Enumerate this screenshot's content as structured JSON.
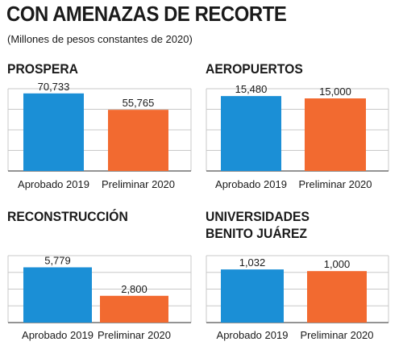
{
  "header": {
    "title": "CON AMENAZAS DE RECORTE",
    "subtitle": "(Millones de pesos constantes de 2020)"
  },
  "colors": {
    "aprobado": "#1b8fd6",
    "preliminar": "#f26a30",
    "grid": "#c8c8c8",
    "axis": "#555555"
  },
  "chart_data": [
    {
      "type": "bar",
      "title": "PROSPERA",
      "categories": [
        "Aprobado 2019",
        "Preliminar 2020"
      ],
      "values": [
        70733,
        55765
      ],
      "value_labels": [
        "70,733",
        "55,765"
      ],
      "ylim": [
        0,
        75000
      ],
      "grid": true
    },
    {
      "type": "bar",
      "title": "AEROPUERTOS",
      "categories": [
        "Aprobado 2019",
        "Preliminar 2020"
      ],
      "values": [
        15480,
        15000
      ],
      "value_labels": [
        "15,480",
        "15,000"
      ],
      "ylim": [
        0,
        17000
      ],
      "grid": true
    },
    {
      "type": "bar",
      "title": "RECONSTRUCCIÓN",
      "categories": [
        "Aprobado 2019",
        "Preliminar 2020"
      ],
      "values": [
        5779,
        2800
      ],
      "value_labels": [
        "5,779",
        "2,800"
      ],
      "ylim": [
        0,
        7000
      ],
      "grid": true
    },
    {
      "type": "bar",
      "title": "UNIVERSIDADES\nBENITO JUÁREZ",
      "title_lines": [
        "UNIVERSIDADES",
        "BENITO JUÁREZ"
      ],
      "categories": [
        "Aprobado 2019",
        "Preliminar 2020"
      ],
      "values": [
        1032,
        1000
      ],
      "value_labels": [
        "1,032",
        "1,000"
      ],
      "ylim": [
        0,
        1300
      ],
      "grid": true
    }
  ]
}
